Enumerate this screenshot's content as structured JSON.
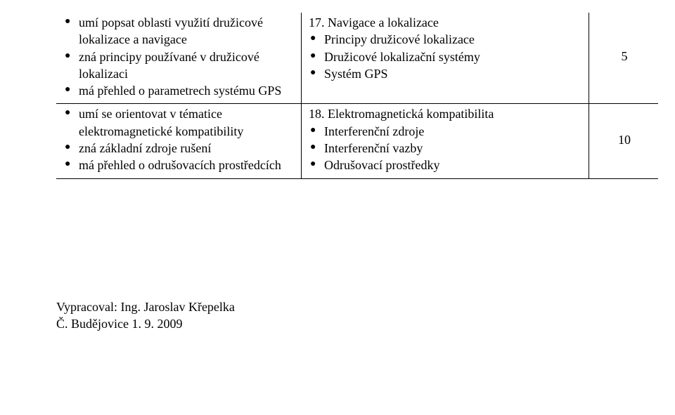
{
  "table": {
    "rows": [
      {
        "left_items": [
          "umí popsat oblasti využití družicové lokalizace a navigace",
          "zná principy používané v družicové lokalizaci",
          "má přehled o parametrech systému GPS"
        ],
        "right_heading": "17. Navigace a lokalizace",
        "right_items": [
          "Principy družicové lokalizace",
          "Družicové lokalizační systémy",
          "Systém GPS"
        ],
        "number": "5"
      },
      {
        "left_items": [
          "umí se orientovat v tématice elektromagnetické kompatibility",
          "zná základní zdroje rušení",
          "má přehled o odrušovacích prostředcích"
        ],
        "right_heading": "18. Elektromagnetická kompatibilita",
        "right_items": [
          "Interferenční zdroje",
          "Interferenční vazby",
          "Odrušovací prostředky"
        ],
        "number": "10"
      }
    ]
  },
  "footer": {
    "line1": "Vypracoval: Ing. Jaroslav Křepelka",
    "line2": "Č. Budějovice 1. 9. 2009"
  }
}
